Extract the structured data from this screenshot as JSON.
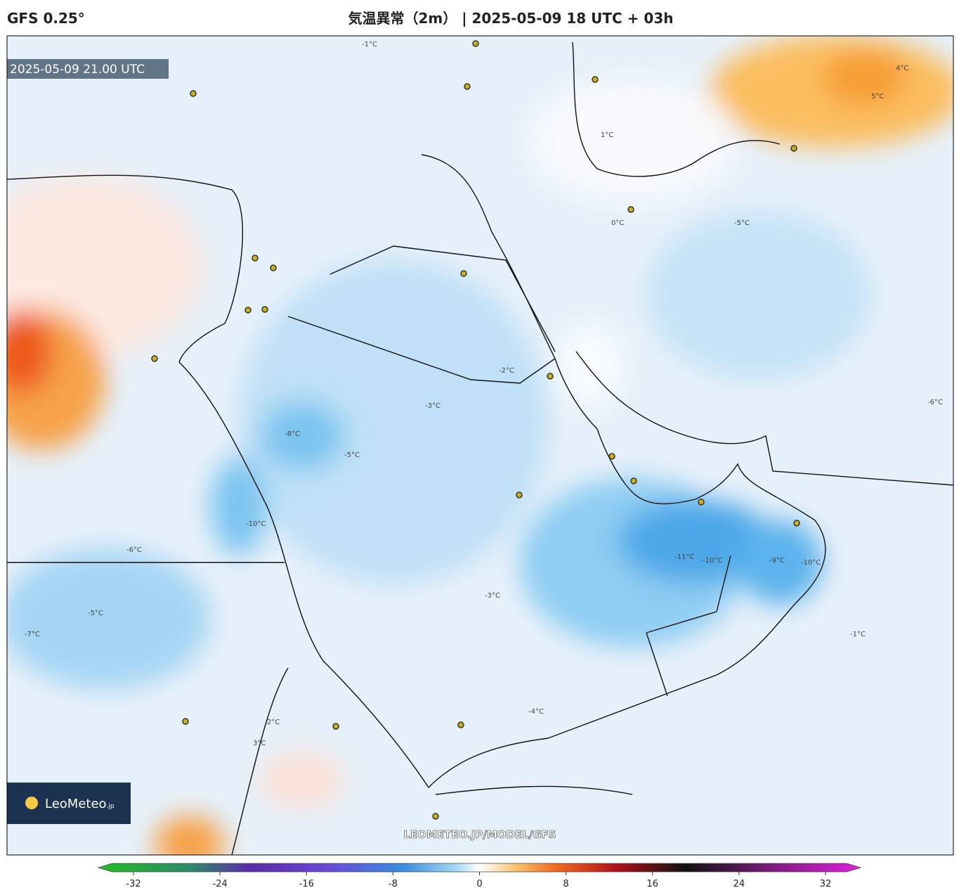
{
  "header": {
    "model": "GFS 0.25°",
    "title": "気温異常（2m） | 2025-05-09 18 UTC + 03h"
  },
  "map": {
    "valid_time": "2025-05-09 21.00 UTC",
    "watermark": "LEOMETEO.JP/MODEL/GFS",
    "logo": {
      "name": "LeoMeteo",
      "suffix": ".jp"
    },
    "contour_labels": [
      "-10°C",
      "-11°C",
      "-10°C",
      "-9°C",
      "-8°C",
      "-6°C",
      "-5°C",
      "-5°C",
      "-7°C",
      "-4°C",
      "-3°C",
      "-3°C",
      "-2°C",
      "-1°C",
      "-1°C",
      "0°C",
      "1°C",
      "2°C",
      "3°C",
      "4°C",
      "5°C",
      "-6°C",
      "-10°C",
      "-5°C"
    ]
  },
  "colorbar": {
    "ticks": [
      -32,
      -24,
      -16,
      -8,
      0,
      8,
      16,
      24,
      32
    ]
  }
}
